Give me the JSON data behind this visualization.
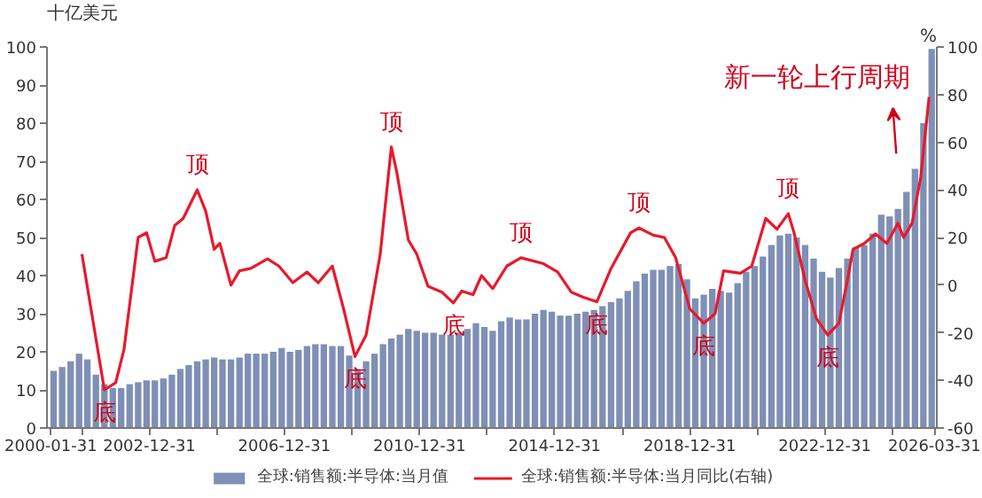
{
  "chart_data": {
    "type": "bar",
    "ylabel": "十亿美元",
    "y2label": "%",
    "series": [
      {
        "name": "全球:销售额:半导体:当月值",
        "color": "#7f8fb5",
        "x": [
          "2000-03",
          "2000-06",
          "2000-09",
          "2000-12",
          "2001-03",
          "2001-06",
          "2001-09",
          "2001-12",
          "2002-03",
          "2002-06",
          "2002-09",
          "2002-12",
          "2003-03",
          "2003-06",
          "2003-09",
          "2003-12",
          "2004-03",
          "2004-06",
          "2004-09",
          "2004-12",
          "2005-03",
          "2005-06",
          "2005-09",
          "2005-12",
          "2006-03",
          "2006-06",
          "2006-09",
          "2006-12",
          "2007-03",
          "2007-06",
          "2007-09",
          "2007-12",
          "2008-03",
          "2008-06",
          "2008-09",
          "2008-12",
          "2009-03",
          "2009-06",
          "2009-09",
          "2009-12",
          "2010-03",
          "2010-06",
          "2010-09",
          "2010-12",
          "2011-03",
          "2011-06",
          "2011-09",
          "2011-12",
          "2012-03",
          "2012-06",
          "2012-09",
          "2012-12",
          "2013-03",
          "2013-06",
          "2013-09",
          "2013-12",
          "2014-03",
          "2014-06",
          "2014-09",
          "2014-12",
          "2015-03",
          "2015-06",
          "2015-09",
          "2015-12",
          "2016-03",
          "2016-06",
          "2016-09",
          "2016-12",
          "2017-03",
          "2017-06",
          "2017-09",
          "2017-12",
          "2018-03",
          "2018-06",
          "2018-09",
          "2018-12",
          "2019-03",
          "2019-06",
          "2019-09",
          "2019-12",
          "2020-03",
          "2020-06",
          "2020-09",
          "2020-12",
          "2021-03",
          "2021-06",
          "2021-09",
          "2021-12",
          "2022-03",
          "2022-06",
          "2022-09",
          "2022-12",
          "2023-03",
          "2023-06",
          "2023-09",
          "2023-12",
          "2024-03",
          "2024-06",
          "2024-09",
          "2024-12",
          "2025-03",
          "2025-06",
          "2025-09",
          "2025-12",
          "2026-03"
        ],
        "values": [
          15,
          16,
          17.5,
          19.5,
          18,
          14,
          11.5,
          10.5,
          10.5,
          11.5,
          12,
          12.5,
          12.5,
          13,
          14,
          15.5,
          16.5,
          17.5,
          18,
          18.5,
          18,
          18,
          18.5,
          19.5,
          19.5,
          19.5,
          20,
          21,
          20,
          20.5,
          21.5,
          22,
          22,
          21.5,
          21.5,
          19,
          15.5,
          17.5,
          19.5,
          22,
          23.5,
          24.5,
          26,
          25.5,
          25,
          25,
          24.5,
          24.5,
          25,
          26,
          27.5,
          26.5,
          25.5,
          28,
          29,
          28.5,
          28.5,
          30,
          31,
          30.5,
          29.5,
          29.5,
          30,
          30.5,
          31,
          32,
          33,
          34,
          36,
          38.5,
          40.5,
          41.5,
          41.5,
          42.5,
          43,
          39,
          34,
          35,
          36.5,
          36,
          35.5,
          38,
          41,
          42.5,
          45,
          48,
          50.5,
          51,
          50,
          48,
          44.5,
          41,
          39.5,
          42,
          44.5,
          47.5,
          48,
          51,
          56,
          55.5,
          57.5,
          62,
          68,
          80,
          99.5
        ]
      },
      {
        "name": "全球:销售额:半导体:当月同比(右轴)",
        "type": "line",
        "axis": "y2",
        "color": "#e8192c",
        "x": [
          "2001-01",
          "2001-09",
          "2002-01",
          "2002-04",
          "2002-09",
          "2002-12",
          "2003-03",
          "2003-07",
          "2003-10",
          "2004-01",
          "2004-06",
          "2004-09",
          "2004-12",
          "2005-02",
          "2005-06",
          "2005-09",
          "2006-01",
          "2006-07",
          "2006-11",
          "2007-04",
          "2007-09",
          "2008-01",
          "2008-06",
          "2008-10",
          "2009-02",
          "2009-06",
          "2009-11",
          "2010-03",
          "2010-05",
          "2010-09",
          "2010-12",
          "2011-04",
          "2011-09",
          "2012-01",
          "2012-04",
          "2012-08",
          "2012-11",
          "2013-03",
          "2013-08",
          "2014-01",
          "2014-09",
          "2015-02",
          "2015-07",
          "2015-11",
          "2016-04",
          "2016-09",
          "2017-04",
          "2017-07",
          "2017-12",
          "2018-04",
          "2018-08",
          "2019-01",
          "2019-06",
          "2019-10",
          "2020-01",
          "2020-07",
          "2020-11",
          "2021-04",
          "2021-08",
          "2021-12",
          "2022-02",
          "2022-06",
          "2022-10",
          "2023-02",
          "2023-06",
          "2023-09",
          "2023-11",
          "2024-03",
          "2024-07",
          "2024-11",
          "2025-03",
          "2025-05",
          "2025-08",
          "2025-11",
          "2026-02"
        ],
        "values": [
          13,
          -44,
          -41,
          -27,
          20,
          22,
          10,
          11.5,
          25,
          28,
          40,
          31,
          15,
          17.5,
          0,
          6,
          7,
          11,
          8,
          1,
          5.5,
          1,
          8,
          -10,
          -30,
          -21,
          13,
          58,
          47,
          19,
          13,
          -0.5,
          -3,
          -7.5,
          -2.5,
          -4,
          4,
          -1.5,
          8,
          11.5,
          9,
          5.5,
          -3,
          -5,
          -7,
          7,
          22,
          24,
          21,
          20,
          11.5,
          -10,
          -16,
          -12,
          6,
          5,
          8,
          28,
          23.5,
          30,
          22,
          2,
          -14,
          -21,
          -16,
          2,
          15,
          17.5,
          21.5,
          17.5,
          26,
          20,
          26,
          45,
          79
        ]
      }
    ],
    "xlim": [
      "1999-12-20",
      "2026-04-25"
    ],
    "xticks": [
      "2000-01-31",
      {
        "value": "2000-12-31",
        "label": null
      },
      "2002-12-31",
      {
        "value": "2004-12-31",
        "label": null
      },
      "2006-12-31",
      {
        "value": "2008-12-31",
        "label": null
      },
      "2010-12-31",
      {
        "value": "2012-12-31",
        "label": null
      },
      "2014-12-31",
      {
        "value": "2016-12-31",
        "label": null
      },
      "2018-12-31",
      {
        "value": "2020-12-31",
        "label": null
      },
      "2022-12-31",
      {
        "value": "2024-12-31",
        "label": null
      },
      "2026-03-31"
    ],
    "ylim": [
      0,
      100
    ],
    "yticks": [
      0,
      10,
      20,
      30,
      40,
      50,
      60,
      70,
      80,
      90,
      100
    ],
    "y2lim": [
      -60,
      100
    ],
    "y2ticks": [
      -60,
      -40,
      -20,
      0,
      20,
      40,
      60,
      80,
      100
    ],
    "grid": false,
    "legend": "bottom",
    "annotations": [
      {
        "text": "顶",
        "x": "2004-06",
        "y": 62.5
      },
      {
        "text": "顶",
        "x": "2010-03",
        "y": 73.8
      },
      {
        "text": "顶",
        "x": "2014-01",
        "y": 44.7
      },
      {
        "text": "顶",
        "x": "2017-07",
        "y": 52.5
      },
      {
        "text": "顶",
        "x": "2021-12",
        "y": 56.3
      },
      {
        "text": "底",
        "x": "2001-09",
        "y": 10
      },
      {
        "text": "底",
        "x": "2009-02",
        "y": 18.8
      },
      {
        "text": "底",
        "x": "2012-01",
        "y": 32.8
      },
      {
        "text": "底",
        "x": "2016-04",
        "y": 33.1
      },
      {
        "text": "底",
        "x": "2019-06",
        "y": 27.5
      },
      {
        "text": "底",
        "x": "2023-02",
        "y": 24.4
      },
      "新一轮上行周期"
    ]
  }
}
